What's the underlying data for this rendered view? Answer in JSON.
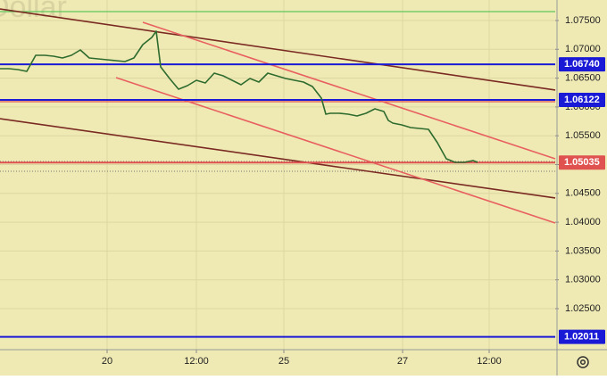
{
  "chart_data": {
    "type": "line",
    "watermark": "Dollar",
    "background": "#efeab4",
    "grid": true,
    "xlim": [
      0,
      155.5
    ],
    "ylim": [
      1.01788,
      1.07856
    ],
    "xticks": [
      {
        "value": 30,
        "label": "20"
      },
      {
        "value": 55,
        "label": "12:00"
      },
      {
        "value": 79.5,
        "label": "25"
      },
      {
        "value": 112.75,
        "label": "27"
      },
      {
        "value": 137,
        "label": "12:00"
      }
    ],
    "yticks": [
      {
        "value": 1.075,
        "label": "1.07500"
      },
      {
        "value": 1.07,
        "label": "1.07000"
      },
      {
        "value": 1.065,
        "label": "1.06500"
      },
      {
        "value": 1.06,
        "label": "1.06000"
      },
      {
        "value": 1.055,
        "label": "1.05500"
      },
      {
        "value": 1.05,
        "label": "1.05000"
      },
      {
        "value": 1.045,
        "label": "1.04500"
      },
      {
        "value": 1.04,
        "label": "1.04000"
      },
      {
        "value": 1.035,
        "label": "1.03500"
      },
      {
        "value": 1.03,
        "label": "1.03000"
      },
      {
        "value": 1.025,
        "label": "1.02500"
      }
    ],
    "series": [
      {
        "color": "#2e6b2e",
        "x": [
          0,
          2.5,
          5,
          7.5,
          10,
          12.5,
          15,
          17.5,
          20,
          22.5,
          25,
          27.5,
          30,
          32.5,
          35,
          37.5,
          40,
          42.5,
          43.75,
          45,
          47.5,
          50,
          52.5,
          55,
          57.5,
          60,
          62.5,
          65,
          67.5,
          70,
          72.5,
          75,
          77.5,
          80,
          82.5,
          85,
          87.5,
          90,
          91.25,
          92.5,
          95,
          97.5,
          100,
          102.5,
          105,
          107.5,
          108.75,
          110,
          112.5,
          115,
          117.5,
          120,
          122.5,
          125,
          127.5,
          130,
          132.5,
          133.75
        ],
        "values": [
          1.06664,
          1.06664,
          1.06649,
          1.06618,
          1.06896,
          1.06896,
          1.06881,
          1.0685,
          1.06896,
          1.06989,
          1.0685,
          1.06834,
          1.06819,
          1.06803,
          1.06788,
          1.0685,
          1.07082,
          1.07206,
          1.07314,
          1.06695,
          1.06494,
          1.06308,
          1.0637,
          1.06463,
          1.06416,
          1.06587,
          1.0654,
          1.06463,
          1.06385,
          1.06494,
          1.06432,
          1.06587,
          1.0654,
          1.06494,
          1.06463,
          1.06432,
          1.06354,
          1.06153,
          1.05875,
          1.0589,
          1.0589,
          1.05875,
          1.05844,
          1.0589,
          1.05967,
          1.05921,
          1.05766,
          1.0572,
          1.05689,
          1.05642,
          1.05627,
          1.05611,
          1.05379,
          1.05101,
          1.05039,
          1.05039,
          1.0507,
          1.05039
        ]
      }
    ],
    "plain_levels": [
      {
        "value": 1.07655,
        "color": "#5cc85c"
      },
      {
        "value": 1.06091,
        "color": "#e05050"
      }
    ],
    "dotted_levels": [
      1.05054,
      1.04884
    ],
    "levels": [
      {
        "value": 1.0674,
        "label": "1.06740",
        "color": "#1a1ad6"
      },
      {
        "value": 1.06122,
        "label": "1.06122",
        "color": "#1a1ad6"
      },
      {
        "value": 1.05035,
        "label": "1.05035",
        "color": "#e0524f"
      },
      {
        "value": 1.02011,
        "label": "1.02011",
        "color": "#1a1ad6"
      }
    ],
    "trendlines": [
      {
        "x": [
          0,
          155.5
        ],
        "y": [
          1.07701,
          1.06293
        ],
        "color": "#7a2a22"
      },
      {
        "x": [
          0,
          155.5
        ],
        "y": [
          1.05797,
          1.0442
        ],
        "color": "#7a2a22"
      },
      {
        "x": [
          40,
          155.5
        ],
        "y": [
          1.07469,
          1.05101
        ],
        "color": "#e86060"
      },
      {
        "x": [
          32.5,
          155.5
        ],
        "y": [
          1.06509,
          1.03986
        ],
        "color": "#e86060"
      }
    ]
  }
}
